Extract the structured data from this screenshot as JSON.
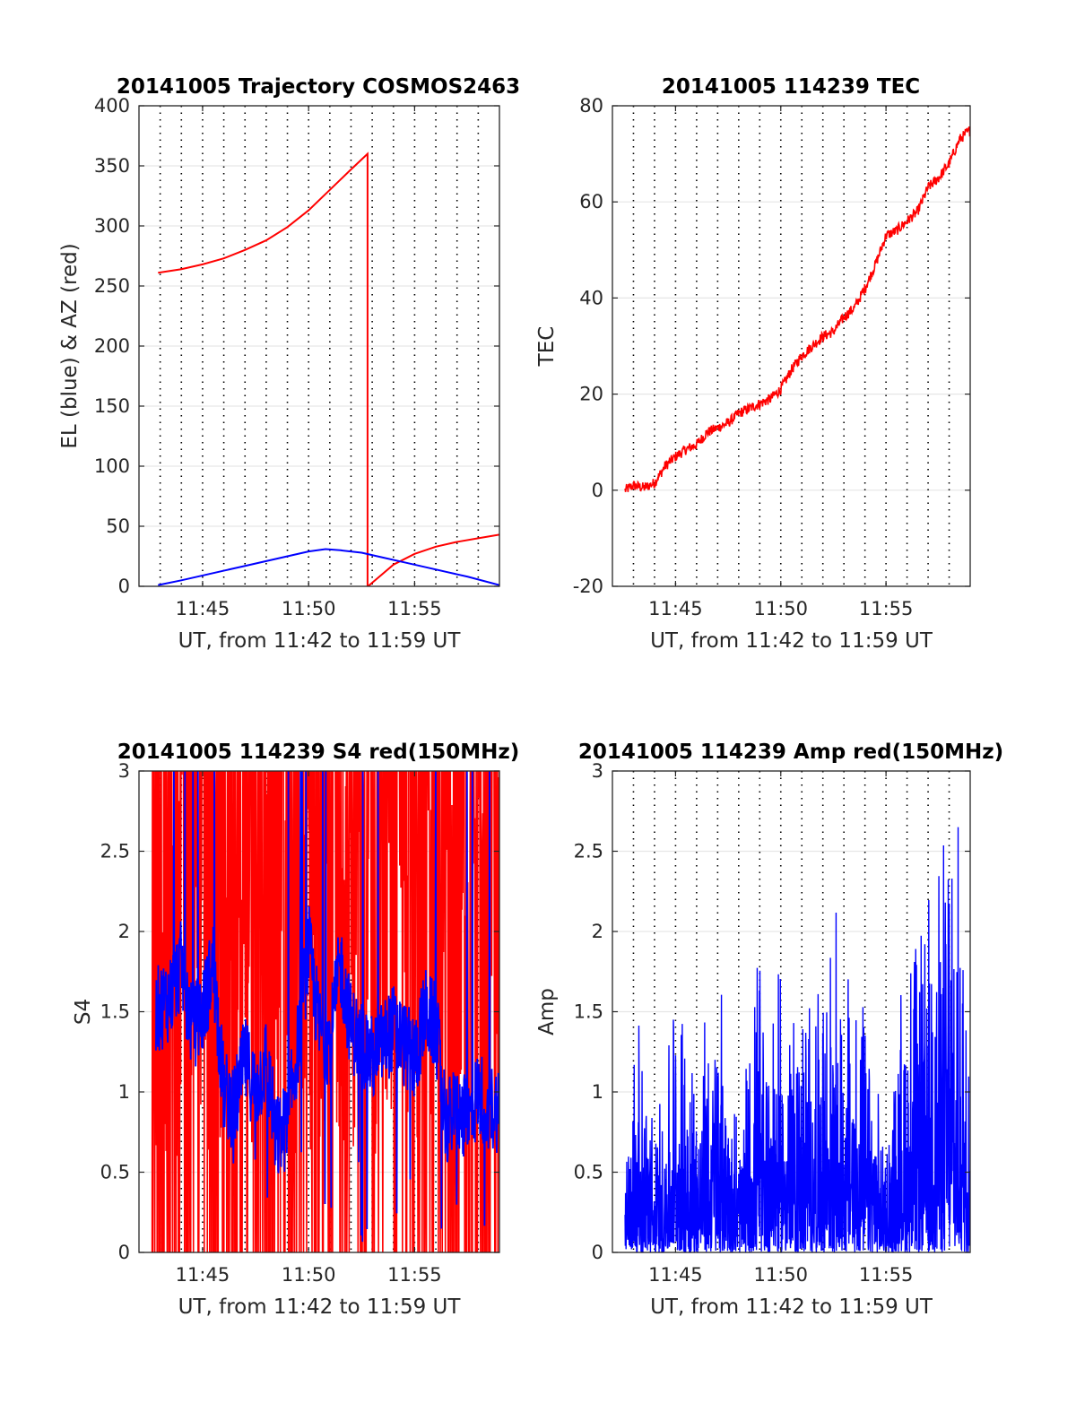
{
  "figure": {
    "colors": {
      "series_red": "#ff0000",
      "series_blue": "#0000ff",
      "axis": "#262626",
      "grid_h": "#e6e6e6",
      "grid_v": "#000000"
    }
  },
  "chart_data": [
    {
      "type": "line",
      "title": "20141005 Trajectory COSMOS2463",
      "xlabel": "UT, from 11:42 to 11:59 UT",
      "ylabel": "EL (blue) & AZ (red)",
      "xlim_minutes": [
        0,
        17
      ],
      "xticks": [
        {
          "label": "11:45",
          "minute": 3
        },
        {
          "label": "11:50",
          "minute": 8
        },
        {
          "label": "11:55",
          "minute": 13
        }
      ],
      "ylim": [
        0,
        400
      ],
      "yticks": [
        "0",
        "50",
        "100",
        "150",
        "200",
        "250",
        "300",
        "350",
        "400"
      ],
      "ytick_values": [
        0,
        50,
        100,
        150,
        200,
        250,
        300,
        350,
        400
      ],
      "grid": "on",
      "series": [
        {
          "color": "#ff0000",
          "x_minutes": [
            0.9,
            2,
            3,
            4,
            5,
            6,
            7,
            8,
            9,
            10,
            10.78,
            10.78,
            10.8,
            12,
            13,
            14,
            15,
            16,
            17
          ],
          "y": [
            261,
            264,
            268,
            273,
            280,
            288,
            299,
            313,
            330,
            347,
            360,
            0,
            0,
            18,
            27,
            33,
            37,
            40,
            43
          ]
        },
        {
          "color": "#0000ff",
          "x_minutes": [
            0.9,
            2,
            3,
            4,
            5,
            6,
            7,
            8,
            8.8,
            9.5,
            10.5,
            11.5,
            12.5,
            13.5,
            14.5,
            15.5,
            17
          ],
          "y": [
            1,
            5,
            9,
            13,
            17,
            21,
            25,
            29,
            31,
            30,
            28,
            24,
            20,
            16,
            12,
            8,
            1
          ]
        }
      ]
    },
    {
      "type": "line",
      "title": "20141005 114239 TEC",
      "xlabel": "UT, from 11:42 to 11:59 UT",
      "ylabel": "TEC",
      "xlim_minutes": [
        0,
        17
      ],
      "xticks": [
        {
          "label": "11:45",
          "minute": 3
        },
        {
          "label": "11:50",
          "minute": 8
        },
        {
          "label": "11:55",
          "minute": 13
        }
      ],
      "ylim": [
        -20,
        80
      ],
      "yticks": [
        "-20",
        "0",
        "20",
        "40",
        "60",
        "80"
      ],
      "ytick_values": [
        -20,
        0,
        20,
        40,
        60,
        80
      ],
      "grid": "on",
      "series": [
        {
          "color": "#ff0000",
          "x_minutes": [
            0.6,
            1.0,
            1.5,
            2.0,
            2.5,
            3.0,
            3.5,
            4.0,
            4.5,
            5.0,
            5.5,
            6.0,
            6.5,
            7.0,
            7.5,
            8.0,
            8.5,
            9.0,
            9.5,
            10.0,
            10.5,
            11.0,
            11.5,
            12.0,
            12.5,
            13.0,
            13.5,
            14.0,
            14.5,
            15.0,
            15.5,
            16.0,
            16.5,
            17.0
          ],
          "y": [
            0,
            1,
            0.5,
            1.5,
            5,
            7,
            8.5,
            9.5,
            12,
            13,
            14,
            16,
            17,
            18,
            19,
            21,
            25,
            28,
            30,
            32,
            33,
            36,
            38,
            42,
            47,
            53,
            54,
            56,
            58,
            63,
            65,
            68,
            73,
            75
          ]
        }
      ]
    },
    {
      "type": "line",
      "title": "20141005 114239 S4 red(150MHz)",
      "xlabel": "UT, from 11:42 to 11:59 UT",
      "ylabel": "S4",
      "xlim_minutes": [
        0,
        17
      ],
      "xticks": [
        {
          "label": "11:45",
          "minute": 3
        },
        {
          "label": "11:50",
          "minute": 8
        },
        {
          "label": "11:55",
          "minute": 13
        }
      ],
      "ylim": [
        0,
        3
      ],
      "yticks": [
        "0",
        "0.5",
        "1",
        "1.5",
        "2",
        "2.5",
        "3"
      ],
      "ytick_values": [
        0,
        0.5,
        1,
        1.5,
        2,
        2.5,
        3
      ],
      "grid": "on",
      "series": [
        {
          "color": "#ff0000",
          "style": "dense-noise",
          "x_range_minutes": [
            0.6,
            17
          ],
          "y_envelope": [
            0,
            3
          ]
        },
        {
          "color": "#0000ff",
          "x_minutes": [
            0.8,
            1.5,
            2.0,
            2.5,
            3.0,
            3.5,
            4.0,
            4.5,
            5.0,
            5.5,
            6.0,
            6.5,
            7.0,
            7.5,
            8.0,
            8.5,
            9.0,
            9.5,
            10.0,
            10.5,
            11.0,
            11.5,
            12.0,
            12.5,
            13.0,
            13.5,
            14.0,
            14.5,
            15.0,
            15.5,
            16.0,
            16.5,
            17.0
          ],
          "y": [
            1.5,
            1.6,
            1.8,
            1.4,
            1.5,
            1.8,
            1.0,
            0.9,
            1.2,
            1.0,
            1.2,
            0.7,
            0.8,
            1.3,
            1.9,
            1.4,
            1.3,
            1.8,
            1.4,
            1.3,
            1.2,
            1.3,
            1.4,
            1.3,
            1.2,
            1.5,
            1.4,
            0.8,
            0.9,
            0.8,
            1.0,
            0.9,
            0.9
          ]
        }
      ]
    },
    {
      "type": "line",
      "title": "20141005 114239 Amp red(150MHz)",
      "xlabel": "UT, from 11:42 to 11:59 UT",
      "ylabel": "Amp",
      "xlim_minutes": [
        0,
        17
      ],
      "xticks": [
        {
          "label": "11:45",
          "minute": 3
        },
        {
          "label": "11:50",
          "minute": 8
        },
        {
          "label": "11:55",
          "minute": 13
        }
      ],
      "ylim": [
        0,
        3
      ],
      "yticks": [
        "0",
        "0.5",
        "1",
        "1.5",
        "2",
        "2.5",
        "3"
      ],
      "ytick_values": [
        0,
        0.5,
        1,
        1.5,
        2,
        2.5,
        3
      ],
      "grid": "on",
      "series": [
        {
          "color": "#0000ff",
          "style": "dense-noise",
          "x_minutes": [
            0.6,
            1,
            2,
            3,
            4,
            5,
            6,
            7,
            8,
            9,
            10,
            11,
            12,
            13,
            14,
            15,
            16,
            17
          ],
          "y_peak": [
            0.6,
            1.4,
            0.7,
            1.5,
            1.1,
            1.6,
            0.8,
            1.7,
            1.5,
            1.4,
            1.6,
            1.8,
            1.3,
            0.6,
            1.8,
            1.9,
            2.6,
            1.9
          ]
        }
      ]
    }
  ]
}
